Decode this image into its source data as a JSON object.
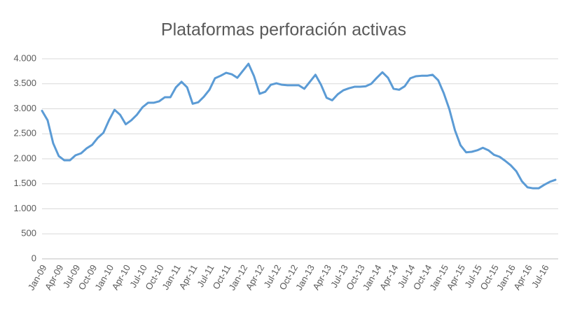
{
  "chart_data": {
    "type": "line",
    "title": "Plataformas perforación activas",
    "categories": [
      "Jan-09",
      null,
      null,
      "Apr-09",
      null,
      null,
      "Jul-09",
      null,
      null,
      "Oct-09",
      null,
      null,
      "Jan-10",
      null,
      null,
      "Apr-10",
      null,
      null,
      "Jul-10",
      null,
      null,
      "Oct-10",
      null,
      null,
      "Jan-11",
      null,
      null,
      "Apr-11",
      null,
      null,
      "Jul-11",
      null,
      null,
      "Oct-11",
      null,
      null,
      "Jan-12",
      null,
      null,
      "Apr-12",
      null,
      null,
      "Jul-12",
      null,
      null,
      "Oct-12",
      null,
      null,
      "Jan-13",
      null,
      null,
      "Apr-13",
      null,
      null,
      "Jul-13",
      null,
      null,
      "Oct-13",
      null,
      null,
      "Jan-14",
      null,
      null,
      "Apr-14",
      null,
      null,
      "Jul-14",
      null,
      null,
      "Oct-14",
      null,
      null,
      "Jan-15",
      null,
      null,
      "Apr-15",
      null,
      null,
      "Jul-15",
      null,
      null,
      "Oct-15",
      null,
      null,
      "Jan-16",
      null,
      null,
      "Apr-16",
      null,
      null,
      "Jul-16",
      null,
      null
    ],
    "series": [
      {
        "color": "#5b9bd5",
        "values": [
          2960,
          2770,
          2310,
          2055,
          1970,
          1970,
          2070,
          2110,
          2210,
          2280,
          2420,
          2520,
          2770,
          2980,
          2880,
          2690,
          2770,
          2880,
          3030,
          3120,
          3120,
          3150,
          3230,
          3230,
          3430,
          3540,
          3430,
          3100,
          3130,
          3240,
          3380,
          3610,
          3660,
          3720,
          3690,
          3620,
          3760,
          3900,
          3650,
          3300,
          3340,
          3480,
          3510,
          3480,
          3470,
          3470,
          3470,
          3400,
          3540,
          3680,
          3480,
          3220,
          3170,
          3290,
          3370,
          3410,
          3440,
          3440,
          3450,
          3500,
          3620,
          3730,
          3620,
          3400,
          3380,
          3450,
          3610,
          3650,
          3660,
          3660,
          3680,
          3570,
          3310,
          2990,
          2570,
          2270,
          2130,
          2140,
          2170,
          2220,
          2170,
          2080,
          2040,
          1960,
          1870,
          1750,
          1550,
          1430,
          1410,
          1410,
          1480,
          1540,
          1580
        ]
      }
    ],
    "ylim": [
      0,
      4000
    ],
    "yticks": [
      0,
      500,
      {
        "value": 1000,
        "label": "1.000"
      },
      {
        "value": 1500,
        "label": "1.500"
      },
      {
        "value": 2000,
        "label": "2.000"
      },
      {
        "value": 2500,
        "label": "2.500"
      },
      {
        "value": 3000,
        "label": "3.000"
      },
      {
        "value": 3500,
        "label": "3.500"
      },
      {
        "value": 4000,
        "label": "4.000"
      }
    ],
    "grid": true
  }
}
